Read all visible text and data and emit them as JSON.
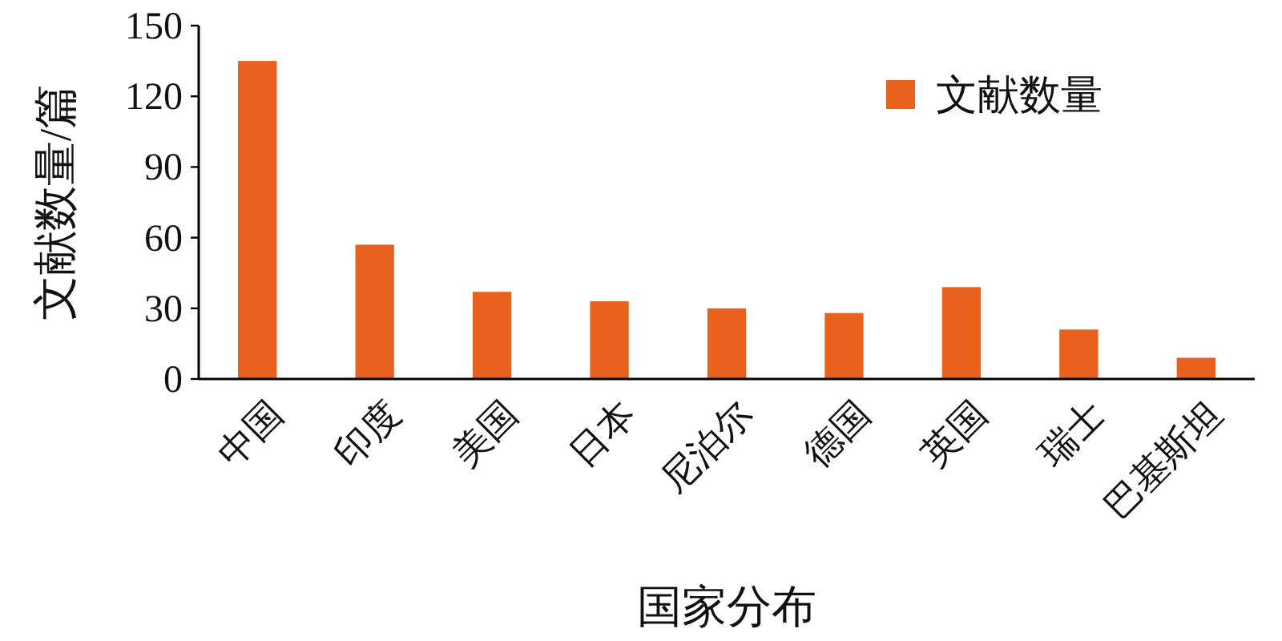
{
  "chart_data": {
    "type": "bar",
    "categories": [
      "中国",
      "印度",
      "美国",
      "日本",
      "尼泊尔",
      "德国",
      "英国",
      "瑞士",
      "巴基斯坦"
    ],
    "series": [
      {
        "name": "文献数量",
        "color": "#e8611d",
        "values": [
          135,
          57,
          37,
          33,
          30,
          28,
          39,
          21,
          9
        ]
      }
    ],
    "xlabel": "国家分布",
    "ylabel": "文献数量/篇",
    "ylim": [
      0,
      150
    ],
    "yticks": [
      0,
      30,
      60,
      90,
      120,
      150
    ],
    "legend": "top right"
  }
}
